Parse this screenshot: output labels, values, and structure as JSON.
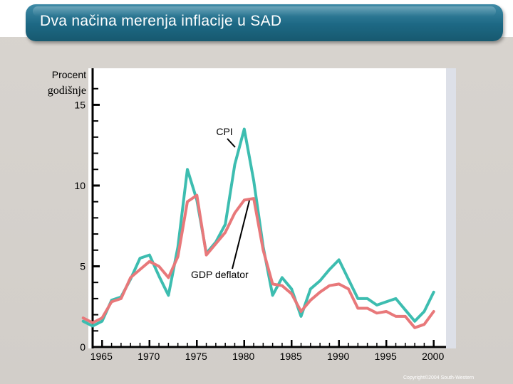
{
  "title": "Dva načina merenja inflacije u SAD",
  "copyright": "Copyright©2004  South-Western",
  "chart_data": {
    "type": "line",
    "ylabel_line1": "Procent",
    "ylabel_line2": "godišnje",
    "ylim": [
      0,
      17
    ],
    "xlim": [
      1964,
      2001
    ],
    "x_ticks": [
      "1965",
      "1970",
      "1975",
      "1980",
      "1985",
      "1990",
      "1995",
      "2000"
    ],
    "y_ticks": [
      "0",
      "5",
      "10",
      "15"
    ],
    "colors": {
      "CPI": "#3dbdb0",
      "GDP deflator": "#e8787a"
    },
    "annotations": {
      "cpi": "CPI",
      "gdp": "GDP deflator"
    },
    "series": [
      {
        "name": "CPI",
        "x": [
          1963,
          1964,
          1965,
          1966,
          1967,
          1968,
          1969,
          1970,
          1971,
          1972,
          1973,
          1974,
          1975,
          1976,
          1977,
          1978,
          1979,
          1980,
          1981,
          1982,
          1983,
          1984,
          1985,
          1986,
          1987,
          1988,
          1989,
          1990,
          1991,
          1992,
          1993,
          1994,
          1995,
          1996,
          1997,
          1998,
          1999,
          2000
        ],
        "values": [
          1.6,
          1.3,
          1.6,
          2.9,
          3.1,
          4.2,
          5.5,
          5.7,
          4.4,
          3.2,
          6.2,
          11.0,
          9.1,
          5.8,
          6.5,
          7.6,
          11.3,
          13.5,
          10.3,
          6.2,
          3.2,
          4.3,
          3.6,
          1.9,
          3.6,
          4.1,
          4.8,
          5.4,
          4.2,
          3.0,
          3.0,
          2.6,
          2.8,
          3.0,
          2.3,
          1.6,
          2.2,
          3.4
        ]
      },
      {
        "name": "GDP deflator",
        "x": [
          1963,
          1964,
          1965,
          1966,
          1967,
          1968,
          1969,
          1970,
          1971,
          1972,
          1973,
          1974,
          1975,
          1976,
          1977,
          1978,
          1979,
          1980,
          1981,
          1982,
          1983,
          1984,
          1985,
          1986,
          1987,
          1988,
          1989,
          1990,
          1991,
          1992,
          1993,
          1994,
          1995,
          1996,
          1997,
          1998,
          1999,
          2000
        ],
        "values": [
          1.8,
          1.5,
          1.8,
          2.8,
          3.0,
          4.3,
          4.8,
          5.3,
          5.0,
          4.3,
          5.6,
          9.0,
          9.4,
          5.7,
          6.4,
          7.1,
          8.3,
          9.1,
          9.2,
          6.0,
          3.9,
          3.8,
          3.3,
          2.2,
          2.9,
          3.4,
          3.8,
          3.9,
          3.6,
          2.4,
          2.4,
          2.1,
          2.2,
          1.9,
          1.9,
          1.2,
          1.4,
          2.2
        ]
      }
    ]
  }
}
